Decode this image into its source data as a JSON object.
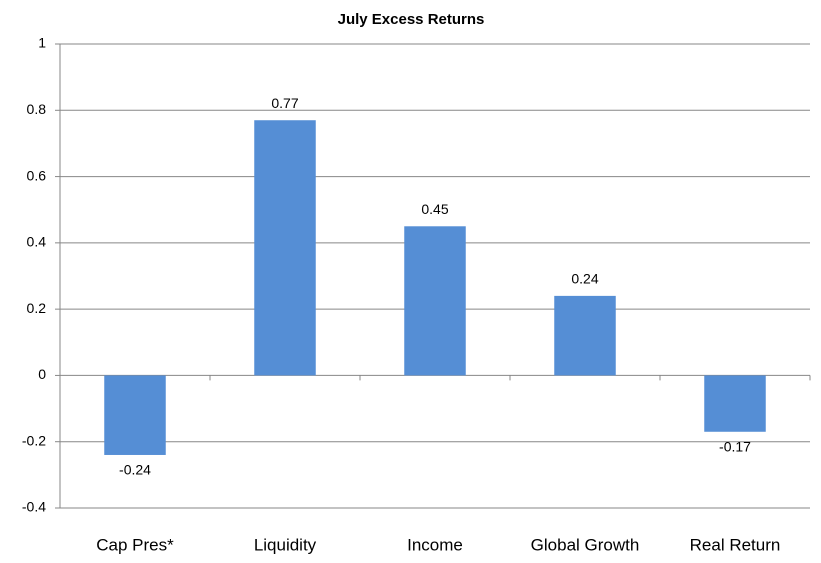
{
  "chart_data": {
    "type": "bar",
    "title": "July Excess Returns",
    "categories": [
      "Cap Pres*",
      "Liquidity",
      "Income",
      "Global Growth",
      "Real Return"
    ],
    "values": [
      -0.24,
      0.77,
      0.45,
      0.24,
      -0.17
    ],
    "color": "#558ed5",
    "ylim": [
      -0.4,
      1
    ],
    "yticks": [
      -0.4,
      -0.2,
      0,
      0.2,
      0.4,
      0.6,
      0.8,
      1
    ],
    "grid": true
  }
}
